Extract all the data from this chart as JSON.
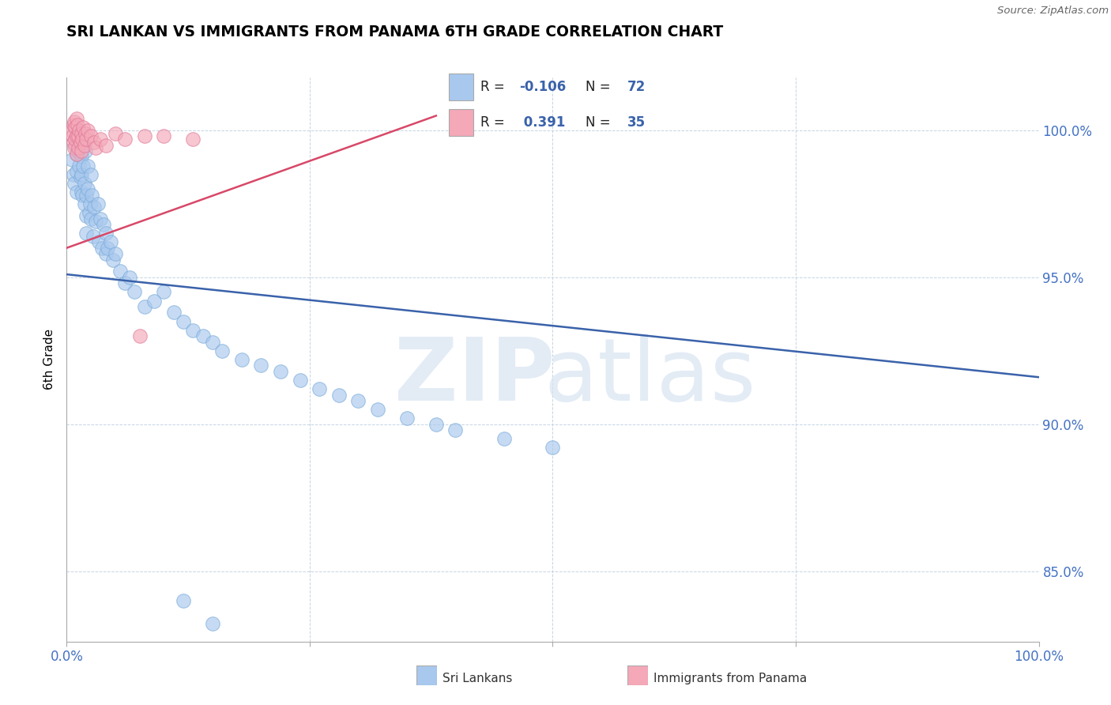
{
  "title": "SRI LANKAN VS IMMIGRANTS FROM PANAMA 6TH GRADE CORRELATION CHART",
  "source": "Source: ZipAtlas.com",
  "ylabel": "6th Grade",
  "ytick_vals": [
    0.85,
    0.9,
    0.95,
    1.0
  ],
  "ytick_labels": [
    "85.0%",
    "90.0%",
    "95.0%",
    "100.0%"
  ],
  "xrange": [
    0.0,
    1.0
  ],
  "yrange": [
    0.826,
    1.018
  ],
  "blue_color": "#A8C8EE",
  "pink_color": "#F4A8B8",
  "blue_edge": "#7AAAD8",
  "pink_edge": "#E07898",
  "blue_line_color": "#3A62AA",
  "pink_line_color": "#D84868",
  "blue_line_x": [
    0.0,
    1.0
  ],
  "blue_line_y": [
    0.951,
    0.916
  ],
  "pink_line_x": [
    0.0,
    0.38
  ],
  "pink_line_y": [
    0.96,
    1.005
  ],
  "sri_lankan_x": [
    0.005,
    0.007,
    0.008,
    0.009,
    0.01,
    0.01,
    0.01,
    0.01,
    0.012,
    0.013,
    0.014,
    0.015,
    0.015,
    0.015,
    0.016,
    0.016,
    0.017,
    0.018,
    0.018,
    0.019,
    0.02,
    0.02,
    0.02,
    0.022,
    0.022,
    0.023,
    0.024,
    0.025,
    0.025,
    0.026,
    0.027,
    0.028,
    0.03,
    0.032,
    0.033,
    0.035,
    0.036,
    0.038,
    0.04,
    0.04,
    0.042,
    0.045,
    0.048,
    0.05,
    0.055,
    0.06,
    0.065,
    0.07,
    0.08,
    0.09,
    0.1,
    0.11,
    0.12,
    0.13,
    0.14,
    0.15,
    0.16,
    0.18,
    0.2,
    0.22,
    0.24,
    0.26,
    0.28,
    0.3,
    0.32,
    0.35,
    0.38,
    0.4,
    0.45,
    0.5,
    0.12,
    0.15
  ],
  "sri_lankan_y": [
    0.99,
    0.985,
    0.982,
    0.995,
    0.998,
    0.992,
    0.986,
    0.979,
    0.993,
    0.988,
    0.984,
    0.991,
    0.985,
    0.979,
    0.996,
    0.978,
    0.988,
    0.982,
    0.975,
    0.993,
    0.978,
    0.971,
    0.965,
    0.988,
    0.98,
    0.972,
    0.975,
    0.985,
    0.97,
    0.978,
    0.964,
    0.974,
    0.969,
    0.975,
    0.962,
    0.97,
    0.96,
    0.968,
    0.965,
    0.958,
    0.96,
    0.962,
    0.956,
    0.958,
    0.952,
    0.948,
    0.95,
    0.945,
    0.94,
    0.942,
    0.945,
    0.938,
    0.935,
    0.932,
    0.93,
    0.928,
    0.925,
    0.922,
    0.92,
    0.918,
    0.915,
    0.912,
    0.91,
    0.908,
    0.905,
    0.902,
    0.9,
    0.898,
    0.895,
    0.892,
    0.84,
    0.832
  ],
  "panama_x": [
    0.005,
    0.006,
    0.007,
    0.007,
    0.008,
    0.008,
    0.009,
    0.009,
    0.01,
    0.01,
    0.01,
    0.011,
    0.012,
    0.012,
    0.013,
    0.014,
    0.015,
    0.015,
    0.016,
    0.017,
    0.018,
    0.019,
    0.02,
    0.022,
    0.025,
    0.028,
    0.03,
    0.035,
    0.04,
    0.05,
    0.06,
    0.08,
    0.1,
    0.13,
    0.075
  ],
  "panama_y": [
    1.0,
    0.998,
    1.002,
    0.996,
    1.003,
    0.994,
    1.001,
    0.997,
    1.004,
    0.998,
    0.992,
    1.002,
    0.998,
    0.994,
    1.0,
    0.996,
    0.999,
    0.993,
    0.997,
    1.001,
    0.995,
    0.999,
    0.997,
    1.0,
    0.998,
    0.996,
    0.994,
    0.997,
    0.995,
    0.999,
    0.997,
    0.998,
    0.998,
    0.997,
    0.93
  ]
}
